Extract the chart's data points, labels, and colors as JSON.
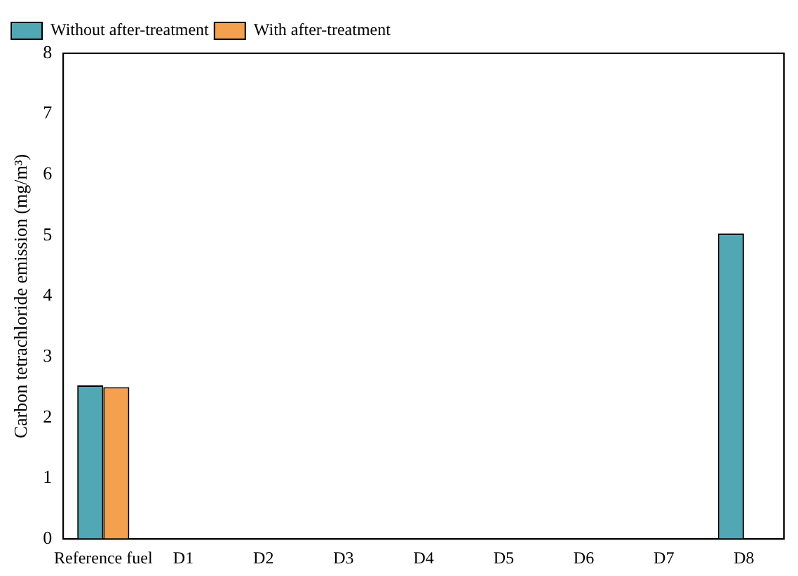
{
  "chart_data": {
    "type": "bar",
    "ylabel": "Carbon tetrachloride emission (mg/m³)",
    "categories": [
      "Reference fuel",
      "D1",
      "D2",
      "D3",
      "D4",
      "D5",
      "D6",
      "D7",
      "D8"
    ],
    "series": [
      {
        "name": "Without after-treatment",
        "color": "#52a7b5",
        "values": [
          2.53,
          0,
          0,
          0,
          0,
          0,
          0,
          0,
          5.03
        ]
      },
      {
        "name": "With after-treatment",
        "color": "#f3a04f",
        "values": [
          2.5,
          0,
          0,
          0,
          0,
          0,
          0,
          0,
          0
        ]
      }
    ],
    "ylim": [
      0,
      8
    ],
    "yticks": [
      0,
      1,
      2,
      3,
      4,
      5,
      6,
      7,
      8
    ],
    "grid": false,
    "legend": "top left"
  }
}
